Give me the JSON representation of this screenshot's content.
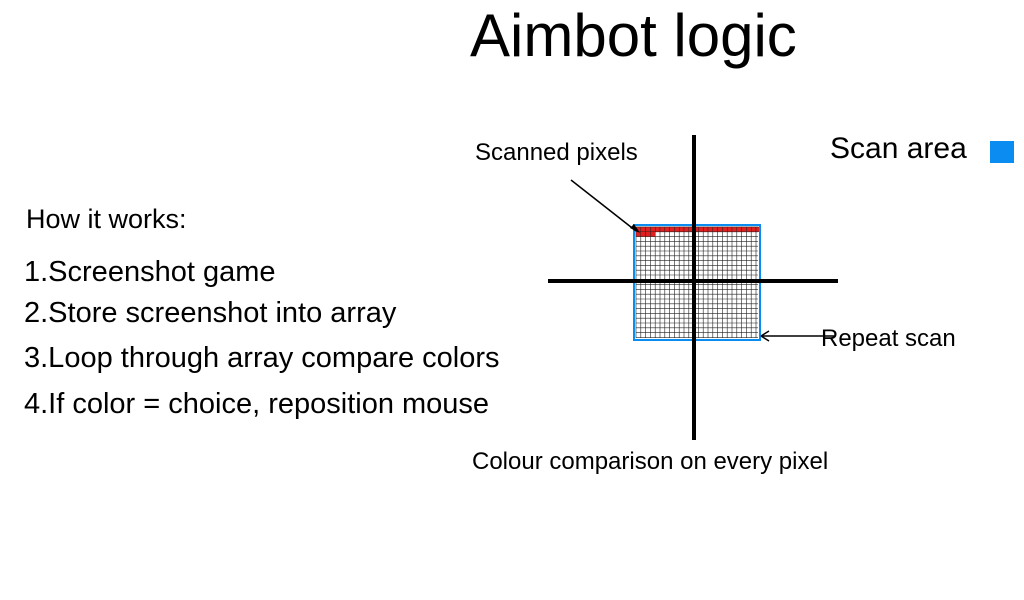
{
  "title": "Aimbot logic",
  "how_it_works": {
    "heading": "How it works:",
    "steps": [
      "1.Screenshot game",
      "2.Store screenshot into array",
      "3.Loop through array compare colors",
      "4.If color = choice, reposition mouse"
    ]
  },
  "diagram": {
    "scanned_pixels_label": "Scanned pixels",
    "repeat_scan_label": "Repeat scan",
    "comparison_label": "Colour comparison on every pixel",
    "legend_label": "Scan area",
    "colors": {
      "scan_area": "#0a8cf0",
      "scanned_pixel": "#e02020",
      "grid_line": "#222222",
      "crosshair": "#000000"
    }
  }
}
